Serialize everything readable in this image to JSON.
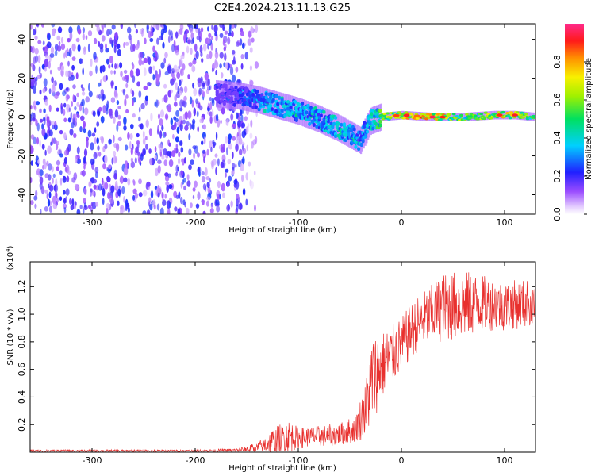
{
  "title": "C2E4.2024.213.11.13.G25",
  "chart_data": [
    {
      "type": "heatmap",
      "xlabel": "Height of straight line (km)",
      "ylabel": "Frequency (Hz)",
      "xlim": [
        -360,
        130
      ],
      "ylim": [
        -50,
        48
      ],
      "x_ticks": [
        -300,
        -200,
        -100,
        0,
        100
      ],
      "x_tick_labels": [
        "-300",
        "-200",
        "-100",
        "0",
        "100"
      ],
      "y_ticks": [
        -40,
        -20,
        0,
        20,
        40
      ],
      "y_tick_labels": [
        "-40",
        "-20",
        "0",
        "20",
        "40"
      ],
      "colorbar": {
        "label": "Normalized spectral amplitude",
        "range": [
          0,
          1
        ],
        "ticks": [
          0.0,
          0.2,
          0.4,
          0.6,
          0.8
        ],
        "tick_labels": [
          "0.0",
          "0.2",
          "0.4",
          "0.6",
          "0.8"
        ]
      },
      "regions": [
        {
          "x_range": [
            -360,
            -150
          ],
          "freq_range": [
            -50,
            48
          ],
          "amplitude": [
            0.05,
            0.25
          ],
          "kind": "broadband noise"
        },
        {
          "x_range": [
            -150,
            -140
          ],
          "freq_range": [
            -50,
            48
          ],
          "amplitude": [
            0.02,
            0.1
          ],
          "kind": "fading noise"
        }
      ],
      "ridge": [
        {
          "x": -180,
          "f": 12,
          "a": 0.25
        },
        {
          "x": -160,
          "f": 11,
          "a": 0.3
        },
        {
          "x": -140,
          "f": 9,
          "a": 0.4
        },
        {
          "x": -120,
          "f": 6,
          "a": 0.45
        },
        {
          "x": -100,
          "f": 3,
          "a": 0.45
        },
        {
          "x": -80,
          "f": -1,
          "a": 0.45
        },
        {
          "x": -60,
          "f": -6,
          "a": 0.5
        },
        {
          "x": -40,
          "f": -12,
          "a": 0.4
        },
        {
          "x": -30,
          "f": -2,
          "a": 0.5
        },
        {
          "x": -20,
          "f": 0,
          "a": 0.6
        },
        {
          "x": 0,
          "f": 1,
          "a": 0.85
        },
        {
          "x": 30,
          "f": 0,
          "a": 0.9
        },
        {
          "x": 60,
          "f": 0,
          "a": 0.6
        },
        {
          "x": 90,
          "f": 1,
          "a": 0.75
        },
        {
          "x": 110,
          "f": 1,
          "a": 0.8
        },
        {
          "x": 130,
          "f": 0,
          "a": 0.6
        }
      ]
    },
    {
      "type": "line",
      "xlabel": "Height of straight line (km)",
      "ylabel": "SNR (10 * v/v)",
      "y_multiplier": "(x10",
      "y_multiplier_exp": "4",
      "y_multiplier_close": ")",
      "xlim": [
        -360,
        130
      ],
      "ylim": [
        0,
        1.38
      ],
      "x_ticks": [
        -300,
        -200,
        -100,
        0,
        100
      ],
      "x_tick_labels": [
        "-300",
        "-200",
        "-100",
        "0",
        "100"
      ],
      "y_ticks": [
        0.2,
        0.4,
        0.6,
        0.8,
        1.0,
        1.2
      ],
      "y_tick_labels": [
        "0.2",
        "0.4",
        "0.6",
        "0.8",
        "1.0",
        "1.2"
      ],
      "color": "#e8302e",
      "x": [
        -360,
        -300,
        -250,
        -200,
        -160,
        -140,
        -125,
        -110,
        -100,
        -90,
        -75,
        -60,
        -45,
        -35,
        -28,
        -20,
        -10,
        0,
        10,
        20,
        30,
        40,
        60,
        80,
        100,
        110,
        130
      ],
      "baseline": [
        0.01,
        0.01,
        0.01,
        0.01,
        0.015,
        0.03,
        0.08,
        0.12,
        0.1,
        0.11,
        0.12,
        0.13,
        0.17,
        0.3,
        0.55,
        0.62,
        0.7,
        0.78,
        0.88,
        0.96,
        1.0,
        1.05,
        1.07,
        1.08,
        1.06,
        1.07,
        1.08
      ],
      "spread": [
        0.008,
        0.008,
        0.008,
        0.008,
        0.012,
        0.04,
        0.09,
        0.12,
        0.08,
        0.07,
        0.08,
        0.08,
        0.1,
        0.2,
        0.35,
        0.25,
        0.22,
        0.2,
        0.2,
        0.2,
        0.22,
        0.25,
        0.25,
        0.2,
        0.18,
        0.18,
        0.18
      ]
    }
  ]
}
